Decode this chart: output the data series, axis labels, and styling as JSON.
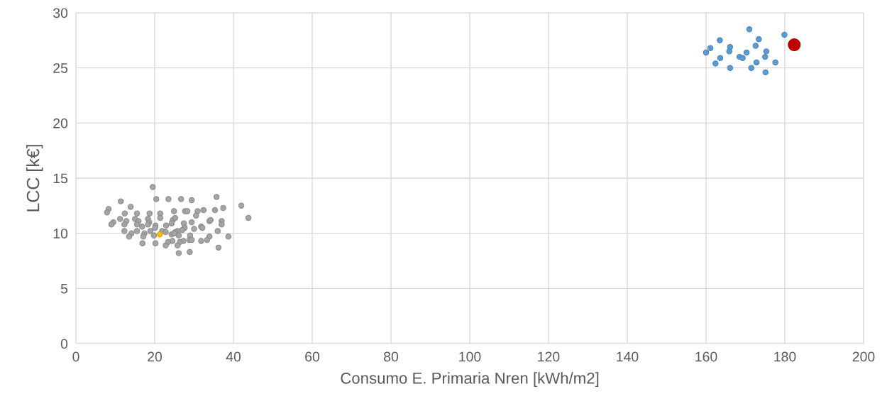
{
  "chart_data": {
    "type": "scatter",
    "xlabel": "Consumo E. Primaria Nren [kWh/m2]",
    "ylabel": "LCC [k€]",
    "xlim": [
      0,
      200
    ],
    "xticks": [
      0,
      20,
      40,
      60,
      80,
      100,
      120,
      140,
      160,
      180,
      200
    ],
    "ylim": [
      0,
      30
    ],
    "yticks": [
      0,
      5,
      10,
      15,
      20,
      25,
      30
    ],
    "grid": true,
    "marker": "circle",
    "series": [
      {
        "color": "#a5a5a5",
        "x": [
          19.5,
          11.4,
          20.4,
          23.5,
          26.7,
          29.4,
          35.7,
          42.0,
          43.8,
          8.3,
          7.9,
          13.9,
          12.4,
          15.5,
          18.7,
          21.4,
          24.9,
          27.7,
          28.3,
          32.4,
          35.3,
          37.4,
          30.9,
          30.5,
          9.5,
          9.0,
          11.2,
          12.8,
          12.3,
          15.0,
          15.9,
          15.5,
          18.3,
          18.6,
          18.3,
          21.4,
          16.8,
          20.2,
          20.1,
          22.9,
          24.6,
          25.2,
          24.3,
          27.4,
          29.4,
          33.9,
          34.2,
          37.0,
          37.0,
          27.6,
          27.0,
          25.8,
          25.2,
          30.0,
          31.8,
          32.1,
          36.0,
          12.3,
          14.1,
          13.5,
          15.5,
          17.4,
          17.1,
          18.9,
          19.8,
          21.9,
          22.8,
          24.3,
          24.9,
          26.1,
          29.0,
          33.9,
          33.3,
          38.7,
          28.8,
          29.4,
          31.8,
          27.3,
          26.4,
          25.8,
          24.5,
          23.4,
          22.8,
          20.2,
          16.9,
          36.2,
          26.1,
          28.9
        ],
        "values": [
          14.2,
          12.9,
          13.1,
          13.1,
          13.1,
          13.0,
          13.3,
          12.5,
          11.4,
          12.2,
          11.9,
          12.4,
          11.8,
          11.8,
          11.8,
          11.8,
          12.0,
          12.0,
          12.0,
          12.1,
          12.1,
          12.3,
          12.0,
          11.6,
          11.0,
          10.8,
          11.3,
          11.1,
          10.8,
          11.3,
          11.1,
          10.8,
          11.3,
          11.0,
          10.8,
          11.4,
          10.6,
          10.7,
          10.5,
          10.7,
          11.2,
          11.4,
          10.9,
          10.9,
          11.0,
          11.1,
          11.2,
          11.1,
          10.8,
          10.5,
          10.3,
          10.2,
          10.1,
          10.4,
          10.6,
          10.5,
          10.2,
          10.2,
          10.0,
          9.7,
          10.2,
          10.0,
          9.7,
          10.2,
          9.8,
          10.2,
          10.1,
          9.9,
          10.0,
          9.8,
          9.8,
          9.7,
          9.4,
          9.7,
          9.4,
          9.4,
          9.3,
          9.3,
          9.2,
          8.9,
          9.3,
          9.2,
          8.9,
          9.1,
          9.1,
          8.7,
          8.2,
          8.3
        ]
      },
      {
        "color": "#ffc000",
        "x": [
          21.3
        ],
        "values": [
          9.9
        ]
      },
      {
        "color": "#5b9bd5",
        "x": [
          171.0,
          179.9,
          163.5,
          173.4,
          161.1,
          166.1,
          172.6,
          160.0,
          165.9,
          170.3,
          175.3,
          163.6,
          168.5,
          169.3,
          175.0,
          162.4,
          172.8,
          177.6,
          166.1,
          171.5,
          175.1
        ],
        "values": [
          28.5,
          28.0,
          27.5,
          27.6,
          26.8,
          26.9,
          27.0,
          26.4,
          26.5,
          26.4,
          26.5,
          25.9,
          26.0,
          25.9,
          26.0,
          25.4,
          25.5,
          25.5,
          25.0,
          25.0,
          24.6
        ]
      },
      {
        "color": "#c00000",
        "x": [
          182.4
        ],
        "values": [
          27.1
        ]
      }
    ]
  }
}
